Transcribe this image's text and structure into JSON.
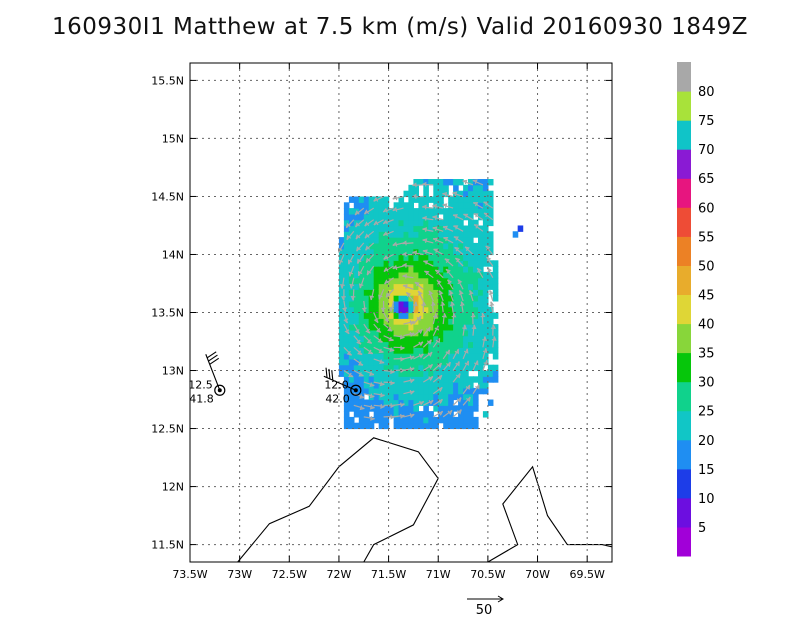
{
  "chart_data": {
    "type": "heatmap",
    "title": "160930I1 Matthew at 7.5 km (m/s) Valid 20160930 1849Z",
    "xlim": [
      -73.5,
      -69.25
    ],
    "ylim": [
      11.35,
      15.65
    ],
    "x_ticks": [
      {
        "value": -73.5,
        "label": "73.5W"
      },
      {
        "value": -73.0,
        "label": "73W"
      },
      {
        "value": -72.5,
        "label": "72.5W"
      },
      {
        "value": -72.0,
        "label": "72W"
      },
      {
        "value": -71.5,
        "label": "71.5W"
      },
      {
        "value": -71.0,
        "label": "71W"
      },
      {
        "value": -70.5,
        "label": "70.5W"
      },
      {
        "value": -70.0,
        "label": "70W"
      },
      {
        "value": -69.5,
        "label": "69.5W"
      }
    ],
    "y_ticks": [
      {
        "value": 11.5,
        "label": "11.5N"
      },
      {
        "value": 12.0,
        "label": "12N"
      },
      {
        "value": 12.5,
        "label": "12.5N"
      },
      {
        "value": 13.0,
        "label": "13N"
      },
      {
        "value": 13.5,
        "label": "13.5N"
      },
      {
        "value": 14.0,
        "label": "14N"
      },
      {
        "value": 14.5,
        "label": "14.5N"
      },
      {
        "value": 15.0,
        "label": "15N"
      },
      {
        "value": 15.5,
        "label": "15.5N"
      }
    ],
    "grid": true,
    "storm_center": {
      "lon": -71.35,
      "lat": 13.55,
      "max_speed": 45
    },
    "colorbar": {
      "labels": [
        "5",
        "10",
        "15",
        "20",
        "25",
        "30",
        "35",
        "40",
        "45",
        "50",
        "55",
        "60",
        "65",
        "70",
        "75",
        "80"
      ],
      "colors": [
        "#a100d8",
        "#6c0ee0",
        "#1d3de8",
        "#1f8ef2",
        "#11c6c6",
        "#10d28c",
        "#06c60b",
        "#88d63a",
        "#dfd636",
        "#e8ac2c",
        "#ec8125",
        "#ee4c36",
        "#e7157f",
        "#8a1ad4",
        "#10c4c8",
        "#a8e23a",
        "#a8a8a8"
      ]
    },
    "reference_vector": {
      "label": "50",
      "value": 50
    },
    "stations": [
      {
        "lon": -73.2,
        "lat": 12.83,
        "top_label": "12.5",
        "bottom_label": "41.8"
      },
      {
        "lon": -71.83,
        "lat": 12.83,
        "top_label": "12.0",
        "bottom_label": "42.0"
      }
    ],
    "coastlines": [
      [
        [
          -73.02,
          11.35
        ],
        [
          -72.7,
          11.68
        ],
        [
          -72.3,
          11.83
        ],
        [
          -72.0,
          12.17
        ],
        [
          -71.65,
          12.42
        ],
        [
          -71.2,
          12.3
        ],
        [
          -71.0,
          12.07
        ],
        [
          -71.25,
          11.67
        ],
        [
          -71.65,
          11.5
        ],
        [
          -71.75,
          11.35
        ]
      ],
      [
        [
          -70.5,
          11.35
        ],
        [
          -70.2,
          11.5
        ],
        [
          -70.35,
          11.85
        ],
        [
          -70.05,
          12.17
        ],
        [
          -69.9,
          11.75
        ],
        [
          -69.7,
          11.5
        ],
        [
          -69.35,
          11.5
        ],
        [
          -69.25,
          11.48
        ]
      ]
    ]
  }
}
